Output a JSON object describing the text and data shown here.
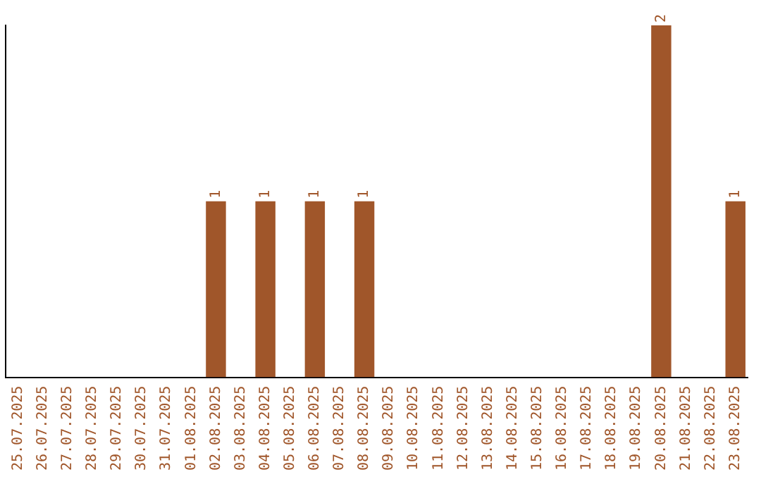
{
  "chart_data": {
    "type": "bar",
    "categories": [
      "25.07.2025",
      "26.07.2025",
      "27.07.2025",
      "28.07.2025",
      "29.07.2025",
      "30.07.2025",
      "31.07.2025",
      "01.08.2025",
      "02.08.2025",
      "03.08.2025",
      "04.08.2025",
      "05.08.2025",
      "06.08.2025",
      "07.08.2025",
      "08.08.2025",
      "09.08.2025",
      "10.08.2025",
      "11.08.2025",
      "12.08.2025",
      "13.08.2025",
      "14.08.2025",
      "15.08.2025",
      "16.08.2025",
      "17.08.2025",
      "18.08.2025",
      "19.08.2025",
      "20.08.2025",
      "21.08.2025",
      "22.08.2025",
      "23.08.2025"
    ],
    "values": [
      0,
      0,
      0,
      0,
      0,
      0,
      0,
      0,
      1,
      0,
      1,
      0,
      1,
      0,
      1,
      0,
      0,
      0,
      0,
      0,
      0,
      0,
      0,
      0,
      0,
      0,
      2,
      0,
      0,
      1
    ],
    "value_labels": [
      null,
      null,
      null,
      null,
      null,
      null,
      null,
      null,
      "1",
      null,
      "1",
      null,
      "1",
      null,
      "1",
      null,
      null,
      null,
      null,
      null,
      null,
      null,
      null,
      null,
      null,
      null,
      "2",
      null,
      null,
      "1"
    ],
    "color": "#a0562a",
    "tick_labels": "x",
    "grid": false,
    "legend": false
  }
}
